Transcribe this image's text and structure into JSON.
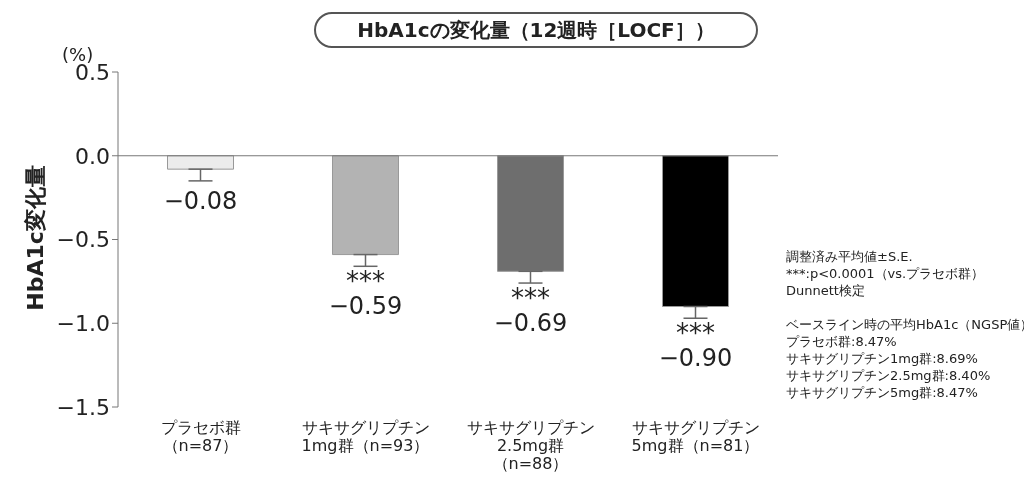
{
  "chart_data": {
    "type": "bar",
    "title": "HbA1cの変化量（12週時［LOCF］）",
    "ylabel": "HbA1c変化量",
    "categories": [
      "プラセボ群（n=87）",
      "サキサグリプチン1mg群（n=93）",
      "サキサグリプチン2.5mg群（n=88）",
      "サキサグリプチン5mg群（n=81）"
    ],
    "values": [
      -0.08,
      -0.59,
      -0.69,
      -0.9
    ],
    "colors": [
      "#ececec",
      "#b3b3b3",
      "#6e6e6e",
      "#000000"
    ],
    "errors": [
      [
        -0.15,
        -0.08
      ],
      [
        -0.66,
        -0.59
      ],
      [
        -0.76,
        -0.69
      ],
      [
        -0.97,
        -0.9
      ]
    ],
    "value_labels": [
      "−0.08",
      "−0.59",
      "−0.69",
      "−0.90"
    ],
    "ylim": [
      -1.5,
      0.5
    ],
    "yticks": [
      {
        "value": 0.5,
        "label": "0.5"
      },
      {
        "value": 0,
        "label": "0.0"
      },
      {
        "value": -0.5,
        "label": "−0.5"
      },
      {
        "value": -1,
        "label": "−1.0"
      },
      {
        "value": -1.5,
        "label": "−1.5"
      }
    ],
    "legend": false,
    "annotations": [
      "(%)",
      "***",
      "***",
      "***",
      "調整済み平均値±S.E.",
      "***:p<0.0001（vs.プラセボ群）",
      "Dunnett検定",
      "ベースライン時の平均HbA1c（NGSP値）",
      "プラセボ群:8.47%",
      "サキサグリプチン1mg群:8.69%",
      "サキサグリプチン2.5mg群:8.40%",
      "サキサグリプチン5mg群:8.47%"
    ]
  }
}
